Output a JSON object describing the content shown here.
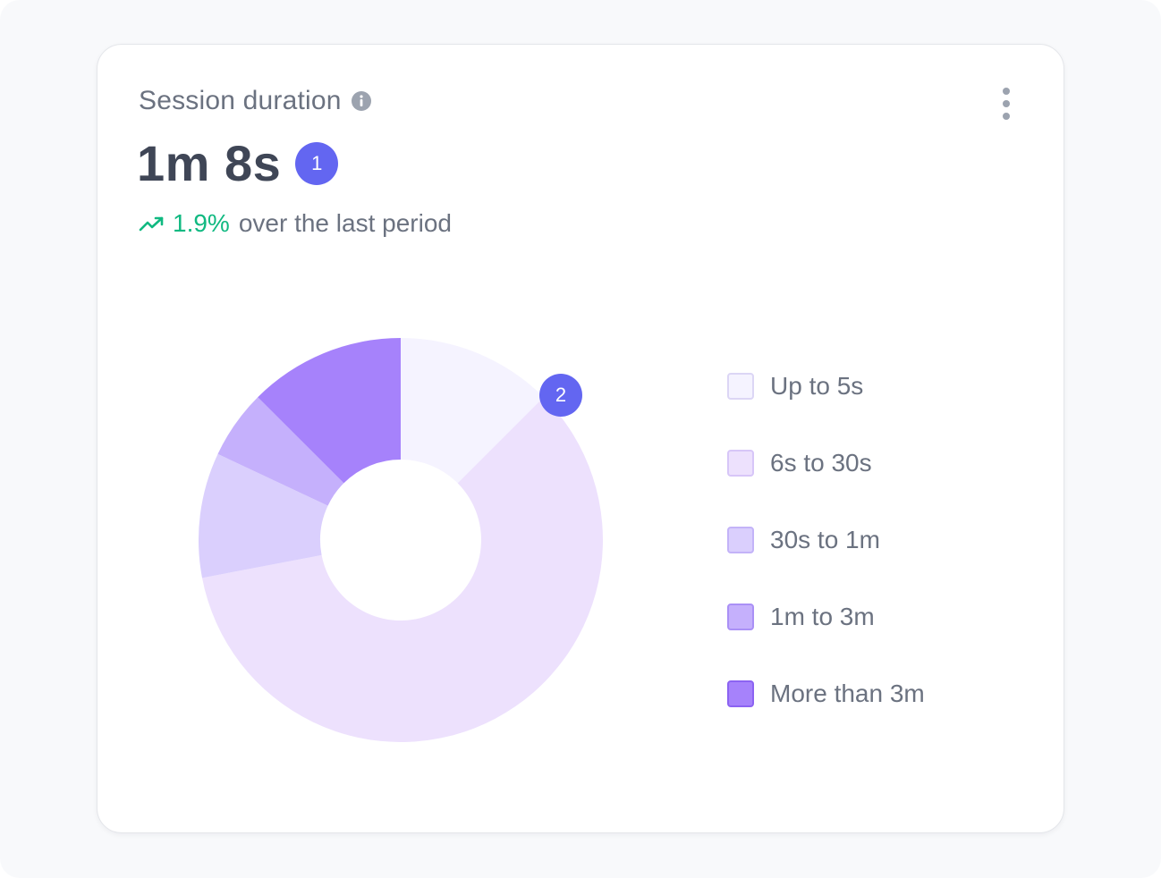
{
  "card": {
    "title": "Session duration",
    "value": "1m 8s",
    "badge_1": "1",
    "badge_2": "2",
    "trend_percent": "1.9%",
    "trend_text": "over the last period",
    "trend_color": "#10b981",
    "icons": {
      "info": "info-icon",
      "menu": "more-vertical-icon",
      "trend": "trending-up-icon"
    }
  },
  "chart_data": {
    "type": "pie",
    "categories": [
      "Up to 5s",
      "6s to 30s",
      "30s to 1m",
      "1m to 3m",
      "More than 3m"
    ],
    "values": [
      12.5,
      59.5,
      10,
      5.5,
      12.5
    ],
    "colors": [
      "#f5f3ff",
      "#ede1fd",
      "#dacffd",
      "#c5b0fc",
      "#a682fb"
    ],
    "legend_position": "right"
  }
}
